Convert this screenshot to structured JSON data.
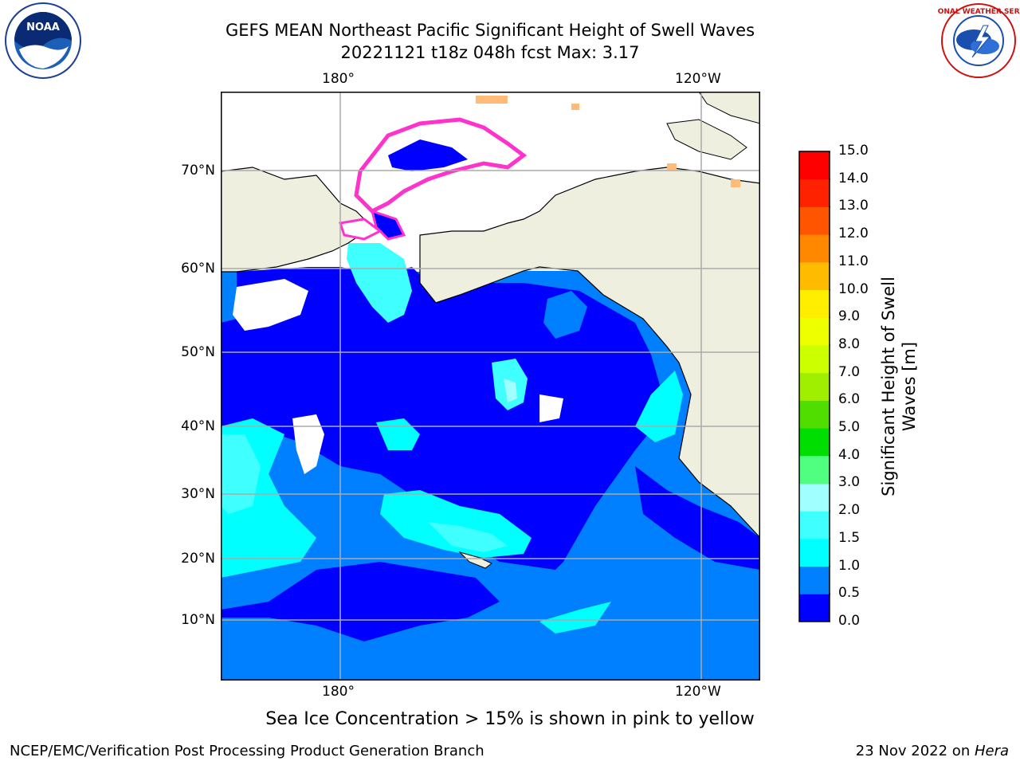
{
  "title_line1": "GEFS MEAN Northeast Pacific Significant Height of Swell Waves",
  "title_line2": "20221121 t18z 048h fcst   Max: 3.17",
  "logos": {
    "left": "noaa-logo",
    "right": "nws-logo",
    "noaa_text": "NOAA",
    "nws_text": "NATIONAL WEATHER SERVICE"
  },
  "map": {
    "lon_labels_top": [
      "180°",
      "120°W"
    ],
    "lon_labels_bottom": [
      "180°",
      "120°W"
    ],
    "lat_labels": [
      "70°N",
      "60°N",
      "50°N",
      "40°N",
      "30°N",
      "20°N",
      "10°N"
    ]
  },
  "colorbar": {
    "title_line1": "Significant Height of Swell",
    "title_line2": "Waves [m]",
    "ticks": [
      "0.0",
      "0.5",
      "1.0",
      "1.5",
      "2.0",
      "3.0",
      "4.0",
      "5.0",
      "6.0",
      "7.0",
      "8.0",
      "9.0",
      "10.0",
      "11.0",
      "12.0",
      "13.0",
      "14.0",
      "15.0"
    ],
    "colors": [
      "#0000ff",
      "#0080ff",
      "#00ffff",
      "#40ffff",
      "#a0ffff",
      "#50ff80",
      "#00dd00",
      "#50dd00",
      "#a0ee00",
      "#ccff00",
      "#eeff00",
      "#ffee00",
      "#ffbb00",
      "#ff8800",
      "#ff5500",
      "#ff2200",
      "#ff0000"
    ]
  },
  "note": "Sea Ice Concentration > 15% is shown in pink to yellow",
  "footer_left": "NCEP/EMC/Verification Post Processing Product Generation Branch",
  "footer_date": "23 Nov 2022 on ",
  "footer_host": "Hera"
}
